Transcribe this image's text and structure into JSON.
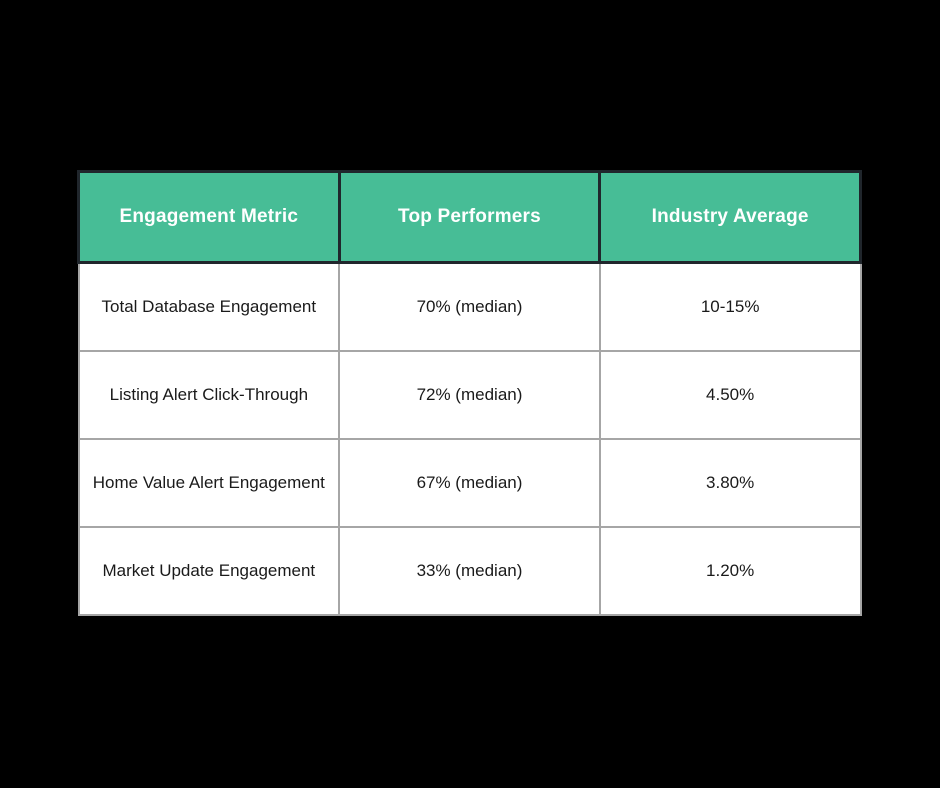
{
  "theme": {
    "page_bg": "#000000",
    "header_bg": "#47BD96",
    "header_text_color": "#FFFFFF",
    "header_border_color": "#20262C",
    "body_bg": "#FFFFFF",
    "body_border_color": "#A6A6A6",
    "body_text_color": "#1A1A1A"
  },
  "table": {
    "columns": [
      "Engagement Metric",
      "Top Performers",
      "Industry Average"
    ],
    "rows": [
      {
        "metric": "Total Database Engagement",
        "top_performers": "70% (median)",
        "industry_average": "10-15%"
      },
      {
        "metric": "Listing Alert Click-Through",
        "top_performers": "72% (median)",
        "industry_average": "4.50%"
      },
      {
        "metric": "Home Value Alert Engagement",
        "top_performers": "67% (median)",
        "industry_average": "3.80%"
      },
      {
        "metric": "Market Update Engagement",
        "top_performers": "33% (median)",
        "industry_average": "1.20%"
      }
    ]
  },
  "chart_data": {
    "type": "table",
    "title": "",
    "columns": [
      "Engagement Metric",
      "Top Performers",
      "Industry Average"
    ],
    "rows": [
      [
        "Total Database Engagement",
        "70% (median)",
        "10-15%"
      ],
      [
        "Listing Alert Click-Through",
        "72% (median)",
        "4.50%"
      ],
      [
        "Home Value Alert Engagement",
        "67% (median)",
        "3.80%"
      ],
      [
        "Market Update Engagement",
        "33% (median)",
        "1.20%"
      ]
    ],
    "numeric_values": {
      "top_performers_median_pct": [
        70,
        72,
        67,
        33
      ],
      "industry_average_pct": [
        "10-15",
        4.5,
        3.8,
        1.2
      ]
    }
  }
}
